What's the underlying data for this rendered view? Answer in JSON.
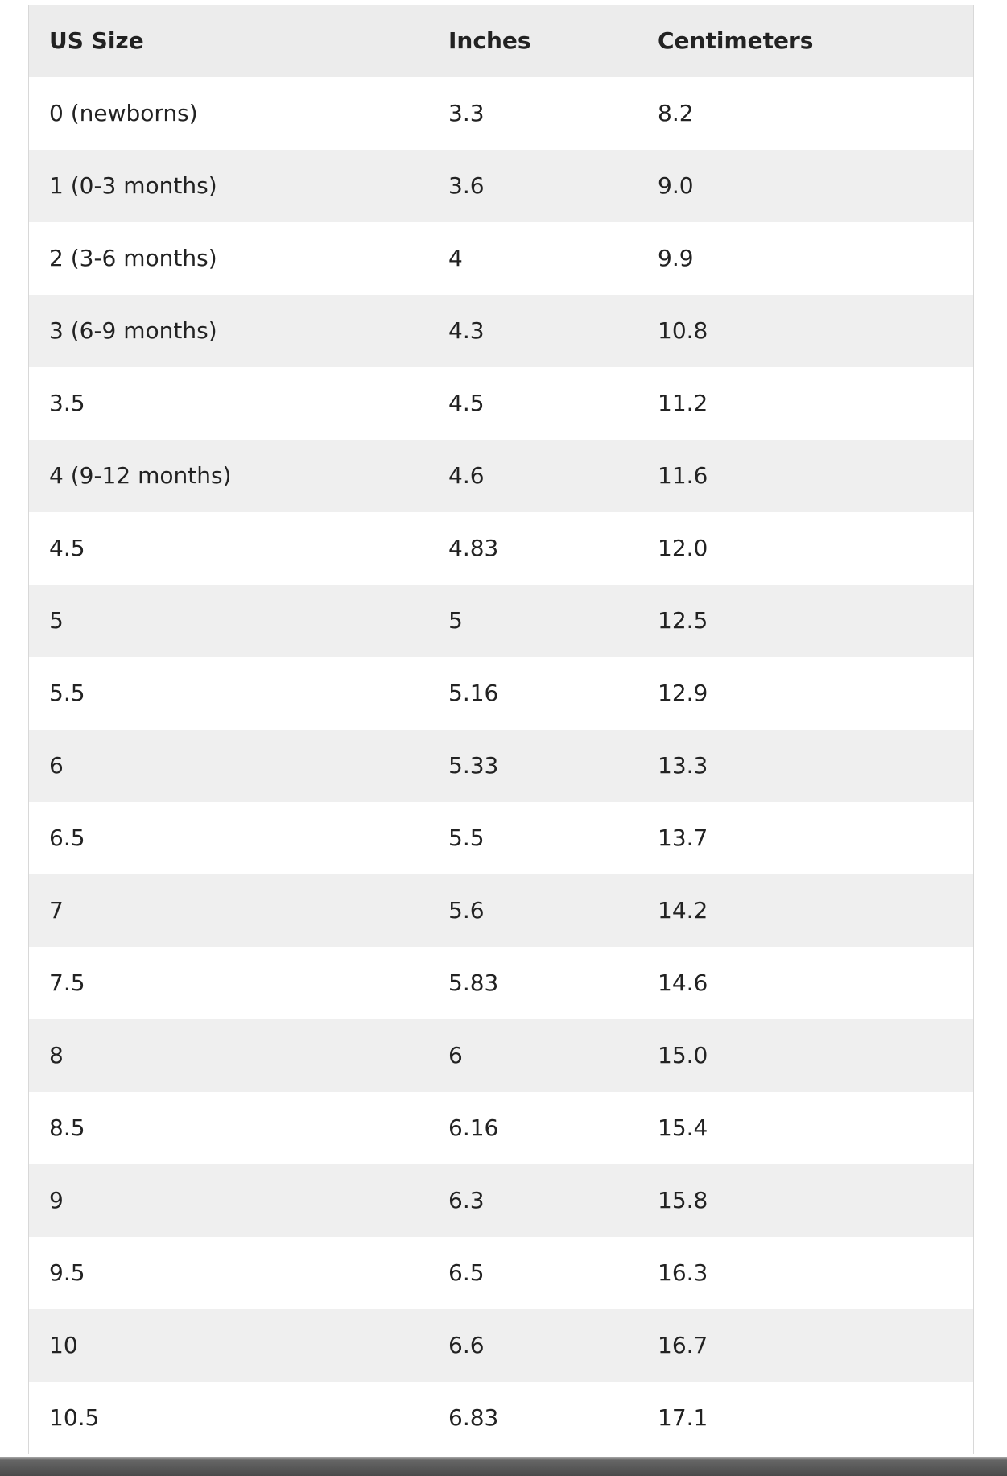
{
  "table": {
    "header": [
      "US Size",
      "Inches",
      "Centimeters"
    ],
    "rows": [
      [
        "0 (newborns)",
        "3.3",
        "8.2"
      ],
      [
        "1 (0-3 months)",
        "3.6",
        "9.0"
      ],
      [
        "2 (3-6 months)",
        "4",
        "9.9"
      ],
      [
        "3 (6-9 months)",
        "4.3",
        "10.8"
      ],
      [
        "3.5",
        "4.5",
        "11.2"
      ],
      [
        "4 (9-12 months)",
        "4.6",
        "11.6"
      ],
      [
        "4.5",
        "4.83",
        "12.0"
      ],
      [
        "5",
        "5",
        "12.5"
      ],
      [
        "5.5",
        "5.16",
        "12.9"
      ],
      [
        "6",
        "5.33",
        "13.3"
      ],
      [
        "6.5",
        "5.5",
        "13.7"
      ],
      [
        "7",
        "5.6",
        "14.2"
      ],
      [
        "7.5",
        "5.83",
        "14.6"
      ],
      [
        "8",
        "6",
        "15.0"
      ],
      [
        "8.5",
        "6.16",
        "15.4"
      ],
      [
        "9",
        "6.3",
        "15.8"
      ],
      [
        "9.5",
        "6.5",
        "16.3"
      ],
      [
        "10",
        "6.6",
        "16.7"
      ],
      [
        "10.5",
        "6.83",
        "17.1"
      ]
    ]
  }
}
